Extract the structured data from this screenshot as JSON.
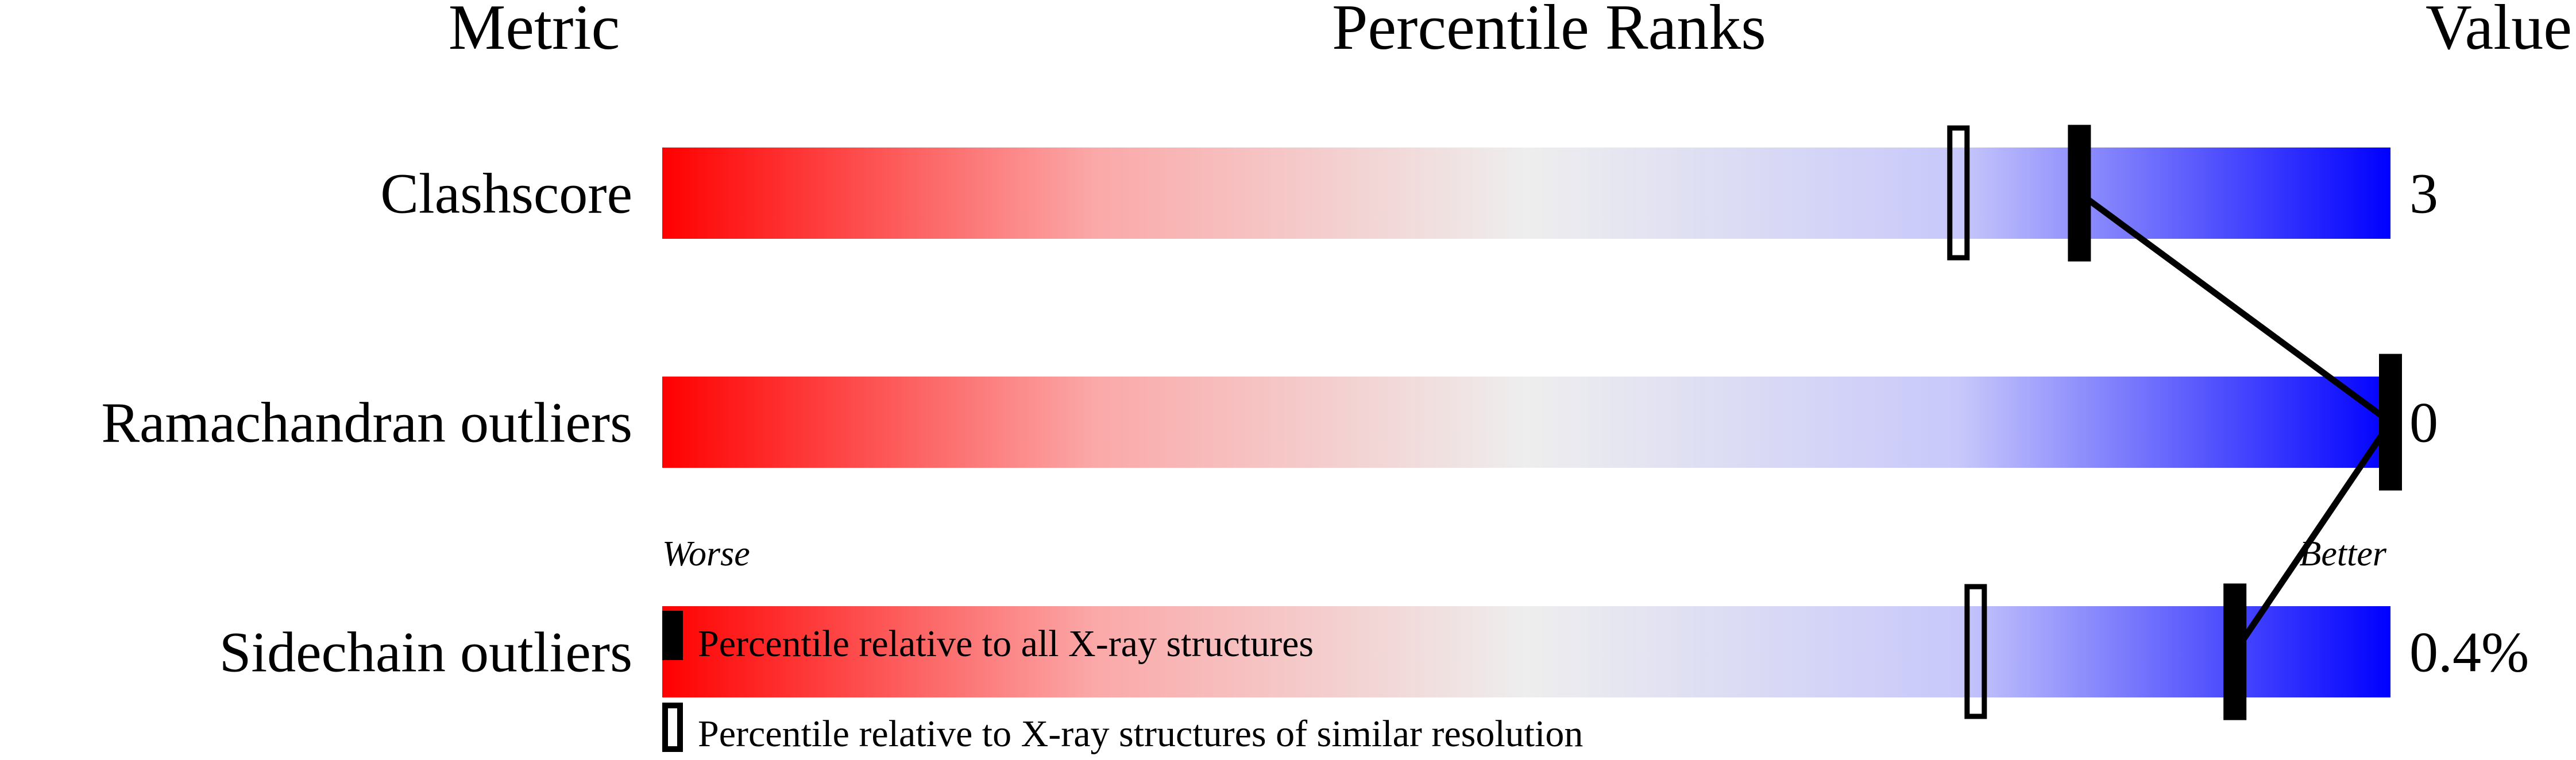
{
  "chart_data": {
    "type": "percentile-bar",
    "headers": {
      "metric": "Metric",
      "ranks": "Percentile Ranks",
      "value": "Value"
    },
    "axis": {
      "min_label": "Worse",
      "max_label": "Better",
      "range": [
        0,
        100
      ]
    },
    "colors": {
      "worse": "#ff0000",
      "middle": "#eeeeee",
      "better": "#0000ff"
    },
    "rows": [
      {
        "metric": "Clashscore",
        "value": "3",
        "percentile_all": 82,
        "percentile_similar": 75
      },
      {
        "metric": "Ramachandran outliers",
        "value": "0",
        "percentile_all": 100,
        "percentile_similar": null
      },
      {
        "metric": "Sidechain outliers",
        "value": "0.4%",
        "percentile_all": 91,
        "percentile_similar": 76
      }
    ],
    "legend": [
      {
        "marker": "filled",
        "label": "Percentile relative to all X-ray structures"
      },
      {
        "marker": "open",
        "label": "Percentile relative to X-ray structures of similar resolution"
      }
    ]
  }
}
